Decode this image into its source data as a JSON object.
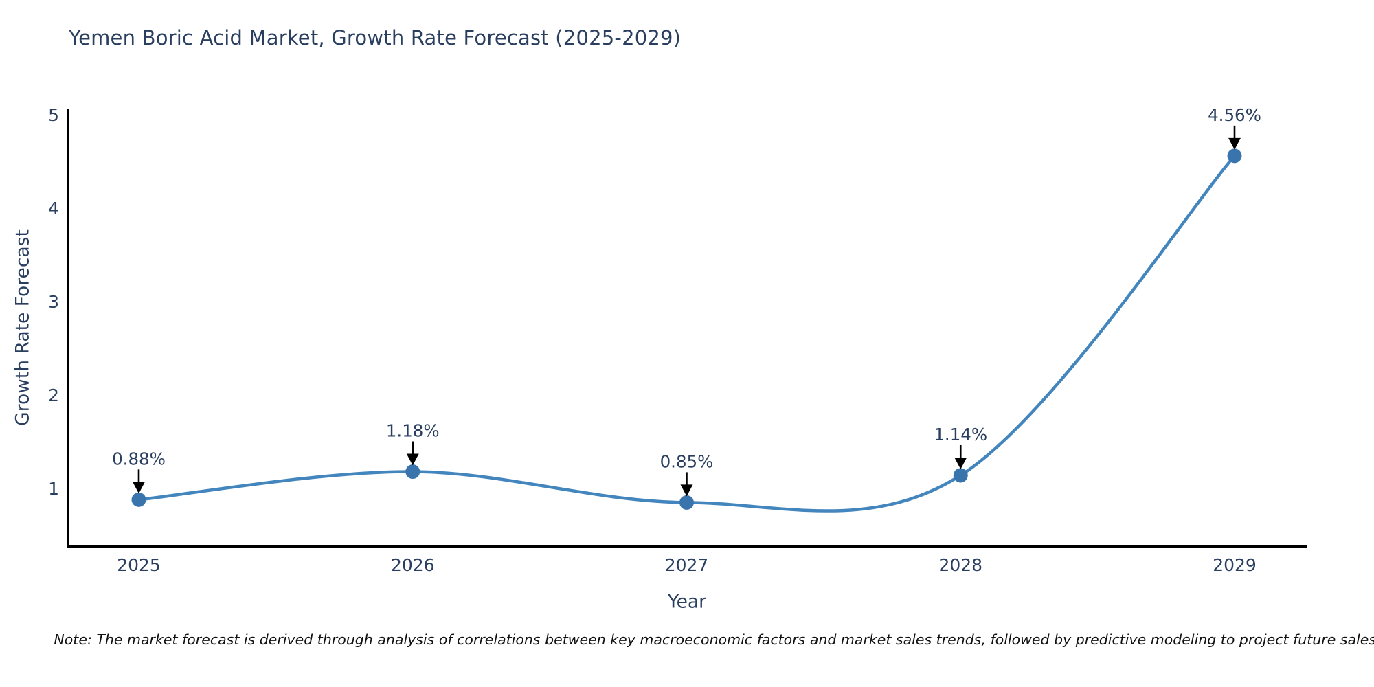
{
  "chart_data": {
    "type": "line",
    "title": "Yemen Boric Acid Market, Growth Rate Forecast (2025-2029)",
    "xlabel": "Year",
    "ylabel": "Growth Rate Forecast",
    "categories": [
      "2025",
      "2026",
      "2027",
      "2028",
      "2029"
    ],
    "series": [
      {
        "name": "Growth Rate Forecast",
        "values": [
          0.88,
          1.18,
          0.85,
          1.14,
          4.56
        ],
        "point_labels": [
          "0.88%",
          "1.18%",
          "0.85%",
          "1.14%",
          "4.56%"
        ]
      }
    ],
    "yticks": [
      1,
      2,
      3,
      4,
      5
    ],
    "ylim": [
      0.38,
      5.05
    ],
    "grid": false,
    "legend": "none",
    "line_smoothing": "spline",
    "annotations_style": "value label with downward black arrow to each marker",
    "colors": {
      "line": "#4385bd",
      "marker": "#3a74ac",
      "axis": "#000000",
      "text": "#2a3f5f",
      "note_text": "#111111"
    },
    "note": "Note: The market forecast is derived through analysis of correlations between key macroeconomic factors and market sales trends, followed by predictive modeling to project future sales."
  }
}
